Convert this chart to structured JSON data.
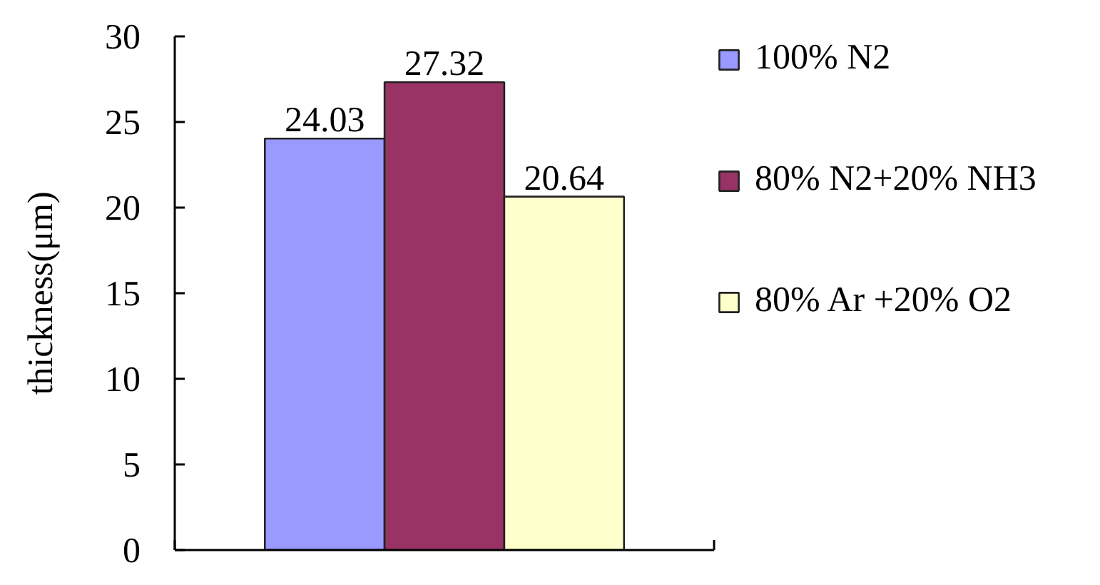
{
  "chart_data": {
    "type": "bar",
    "categories": [
      null
    ],
    "series": [
      {
        "name": "100% N2",
        "color": "#9999ff",
        "values": [
          24.03
        ]
      },
      {
        "name": "80% N2+20% NH3",
        "color": "#993366",
        "values": [
          27.32
        ]
      },
      {
        "name": "80% Ar +20% O2",
        "color": "#ffffcc",
        "values": [
          20.64
        ]
      }
    ],
    "ylabel": "thickness(μm)",
    "ylim": [
      0,
      30
    ],
    "yticks": [
      0,
      5,
      10,
      15,
      20,
      25,
      30
    ],
    "data_labels": true,
    "legend": "top right"
  }
}
